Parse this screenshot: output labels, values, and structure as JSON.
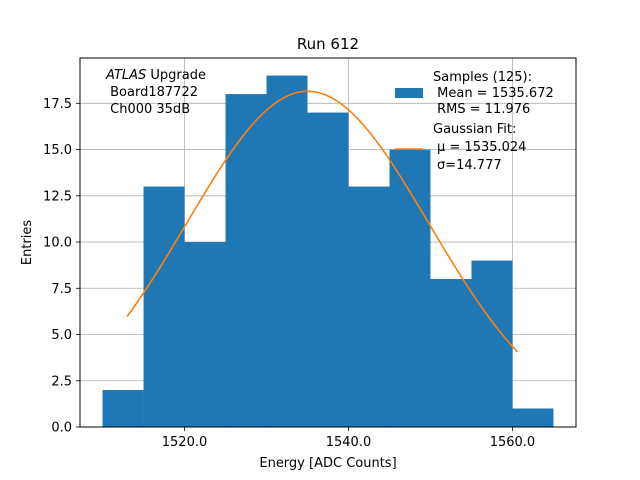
{
  "chart_data": {
    "type": "bar",
    "title": "Run 612",
    "xlabel": "Energy [ADC Counts]",
    "ylabel": "Entries",
    "xlim": [
      1507.25,
      1567.75
    ],
    "ylim": [
      0,
      19.95
    ],
    "grid": true,
    "xticks": [
      {
        "value": 1520,
        "label": "1520.0"
      },
      {
        "value": 1540,
        "label": "1540.0"
      },
      {
        "value": 1560,
        "label": "1560.0"
      }
    ],
    "yticks": [
      {
        "value": 0,
        "label": "0.0"
      },
      {
        "value": 2.5,
        "label": "2.5"
      },
      {
        "value": 5,
        "label": "5.0"
      },
      {
        "value": 7.5,
        "label": "7.5"
      },
      {
        "value": 10,
        "label": "10.0"
      },
      {
        "value": 12.5,
        "label": "12.5"
      },
      {
        "value": 15,
        "label": "15.0"
      },
      {
        "value": 17.5,
        "label": "17.5"
      }
    ],
    "bin_edges": [
      1510,
      1515,
      1520,
      1525,
      1530,
      1535,
      1540,
      1545,
      1550,
      1555,
      1560,
      1565
    ],
    "values": [
      2,
      13,
      10,
      18,
      19,
      17,
      13,
      15,
      8,
      9,
      1
    ],
    "bar_color": "#1f77b4",
    "fit": {
      "amplitude": 18.15,
      "mu": 1535.024,
      "sigma": 14.777,
      "x_range": [
        1513,
        1560.6
      ],
      "color": "#ff7f0e"
    },
    "annotation_lines": [
      "ATLAS Upgrade",
      " Board187722",
      " Ch000 35dB"
    ],
    "legend": {
      "location": "upper right",
      "samples_lines": [
        "Samples (125):",
        " Mean = 1535.672",
        " RMS = 11.976"
      ],
      "fit_lines": [
        "Gaussian Fit:",
        "μ = 1535.024",
        "σ=14.777"
      ]
    }
  }
}
